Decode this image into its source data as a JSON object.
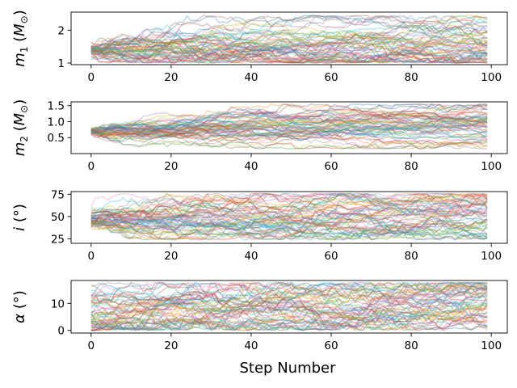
{
  "chart_data": {
    "type": "line",
    "layout": "4 vertically stacked panels sharing x axis",
    "xlabel": "Step Number",
    "x_range": [
      0,
      99
    ],
    "xticks": [
      0,
      20,
      40,
      60,
      80,
      100
    ],
    "xtick_labels": [
      "0",
      "20",
      "40",
      "60",
      "80",
      "100"
    ],
    "walkers": 60,
    "steps": 100,
    "line_alpha": 0.3,
    "grid": false,
    "palette": [
      "#1f77b4",
      "#ff7f0e",
      "#2ca02c",
      "#d62728",
      "#9467bd",
      "#8c564b",
      "#e377c2",
      "#7f7f7f",
      "#bcbd22",
      "#17becf"
    ],
    "panels": [
      {
        "id": "m1",
        "ylabel_main": "m",
        "ylabel_sub": "1",
        "ylabel_unit": "(M",
        "ylabel_unit_sub": "⊙",
        "ylabel_close": ")",
        "ylim": [
          0.95,
          2.55
        ],
        "yticks": [
          1,
          2
        ],
        "ytick_labels": [
          "1",
          "2"
        ],
        "start_center": 1.4,
        "start_spread": 0.12,
        "step_sigma": 0.09,
        "clip": [
          1.0,
          2.45
        ],
        "drift": 0.0
      },
      {
        "id": "m2",
        "ylabel_main": "m",
        "ylabel_sub": "2",
        "ylabel_unit": "(M",
        "ylabel_unit_sub": "⊙",
        "ylabel_close": ")",
        "ylim": [
          0.0,
          1.62
        ],
        "yticks": [
          0.5,
          1.0,
          1.5
        ],
        "ytick_labels": [
          "0.5",
          "1.0",
          "1.5"
        ],
        "start_center": 0.7,
        "start_spread": 0.06,
        "step_sigma": 0.06,
        "clip": [
          0.15,
          1.55
        ],
        "drift": 0.002
      },
      {
        "id": "i",
        "ylabel_main": "i",
        "ylabel_unit": "(°)",
        "ylim": [
          20,
          78
        ],
        "yticks": [
          25,
          50,
          75
        ],
        "ytick_labels": [
          "25",
          "50",
          "75"
        ],
        "start_center": 45,
        "start_spread": 5,
        "step_sigma": 3.2,
        "clip": [
          24,
          76
        ],
        "drift": 0.0
      },
      {
        "id": "alpha",
        "ylabel_main": "α",
        "ylabel_unit": "(°)",
        "ylim": [
          -1,
          18.5
        ],
        "yticks": [
          0,
          10
        ],
        "ytick_labels": [
          "0",
          "10"
        ],
        "start_center": 6,
        "start_spread": 5,
        "step_sigma": 1.3,
        "clip": [
          0.0,
          17.8
        ],
        "drift": 0.0
      }
    ]
  }
}
